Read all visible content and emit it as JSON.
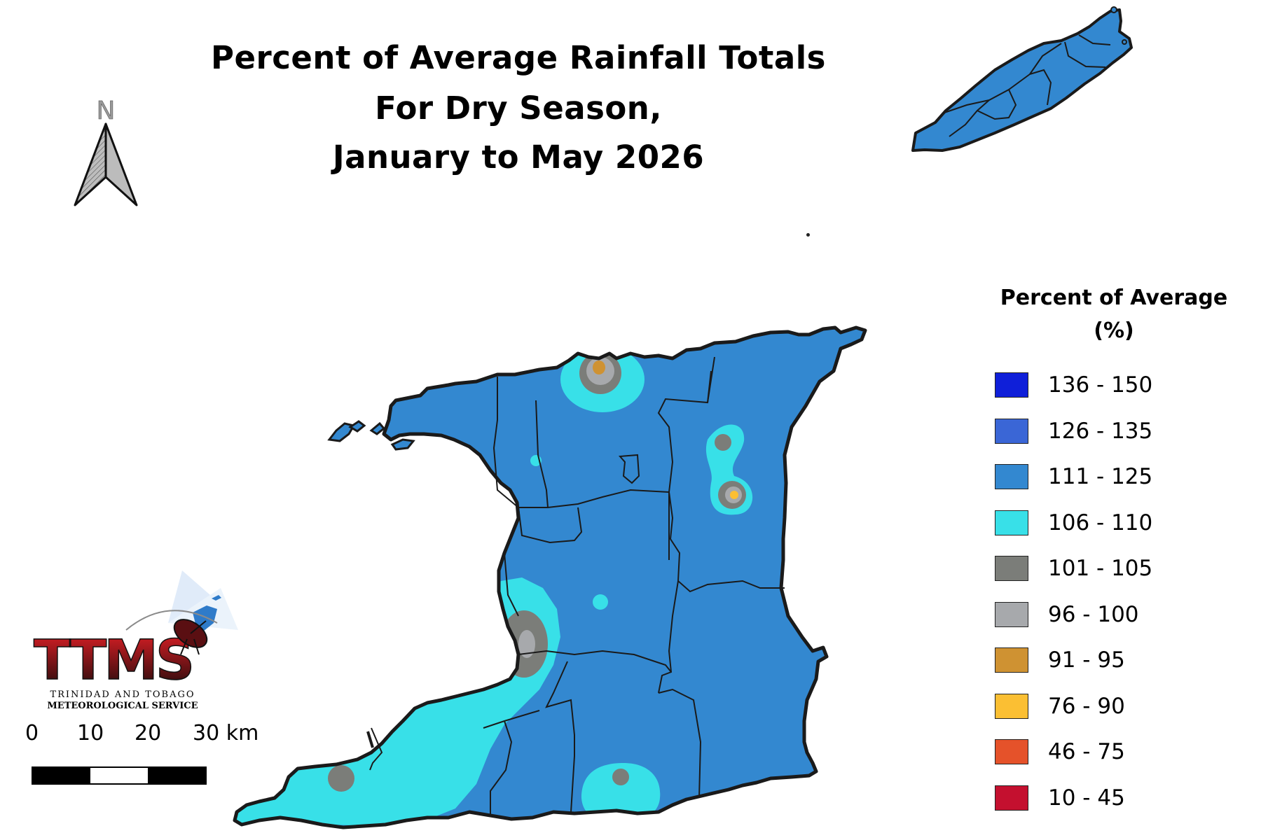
{
  "title": {
    "line1": "Percent of Average Rainfall Totals",
    "line2": "For Dry Season,",
    "line3": "January to May 2026"
  },
  "north_arrow": {
    "label": "N",
    "icon": "north-arrow-icon"
  },
  "legend": {
    "title_line1": "Percent of Average",
    "title_line2": "(%)",
    "items": [
      {
        "label": "136 - 150",
        "color": "#0f1fd9"
      },
      {
        "label": "126 - 135",
        "color": "#3a66d6"
      },
      {
        "label": "111 - 125",
        "color": "#3388d0"
      },
      {
        "label": "106 - 110",
        "color": "#38e0e8"
      },
      {
        "label": "101 - 105",
        "color": "#7b7d79"
      },
      {
        "label": "96 - 100",
        "color": "#a7a9ac"
      },
      {
        "label": "91 - 95",
        "color": "#cf9232"
      },
      {
        "label": "76 - 90",
        "color": "#fbbf33"
      },
      {
        "label": "46 - 75",
        "color": "#e5522a"
      },
      {
        "label": "10 - 45",
        "color": "#c4102f"
      }
    ]
  },
  "scale_bar": {
    "ticks": [
      "0",
      "10",
      "20",
      "30 km"
    ]
  },
  "logo": {
    "acronym": "TTMS",
    "line1": "TRINIDAD AND TOBAGO",
    "line2": "METEOROLOGICAL SERVICE"
  },
  "map": {
    "islands": [
      "Trinidad",
      "Tobago"
    ],
    "base_color": "#3388d0"
  }
}
